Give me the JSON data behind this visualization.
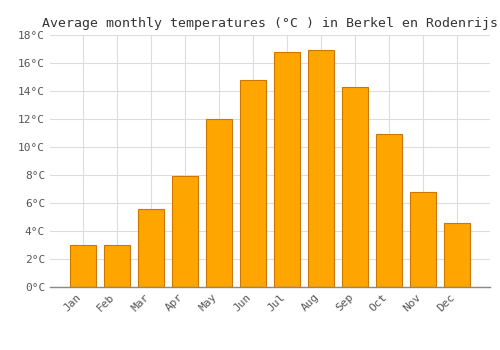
{
  "title": "Average monthly temperatures (°C ) in Berkel en Rodenrijs",
  "months": [
    "Jan",
    "Feb",
    "Mar",
    "Apr",
    "May",
    "Jun",
    "Jul",
    "Aug",
    "Sep",
    "Oct",
    "Nov",
    "Dec"
  ],
  "values": [
    3.0,
    3.0,
    5.6,
    7.9,
    12.0,
    14.8,
    16.8,
    16.9,
    14.3,
    10.9,
    6.8,
    4.6
  ],
  "bar_color": "#FFA500",
  "bar_edge_color": "#CC7700",
  "background_color": "#FFFFFF",
  "plot_bg_color": "#FFFFFF",
  "grid_color": "#DDDDDD",
  "title_fontsize": 9.5,
  "tick_fontsize": 8,
  "ylim": [
    0,
    18
  ],
  "yticks": [
    0,
    2,
    4,
    6,
    8,
    10,
    12,
    14,
    16,
    18
  ]
}
